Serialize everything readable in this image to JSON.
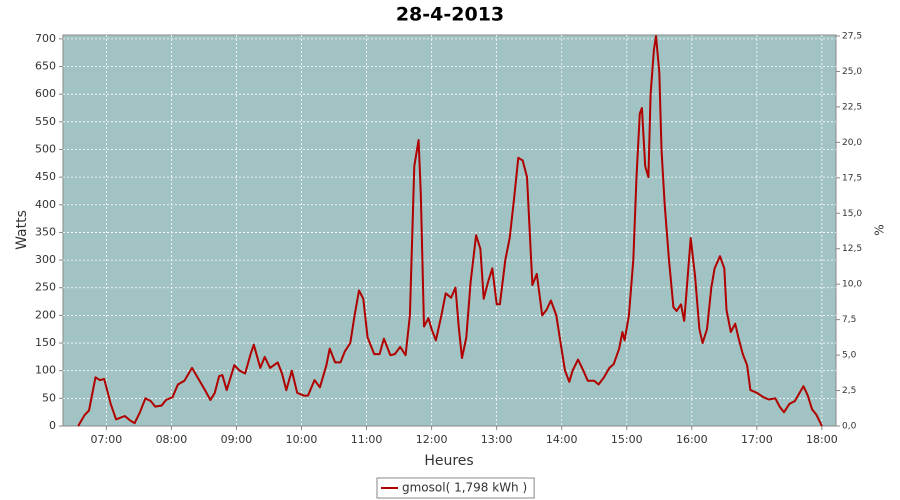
{
  "chart_data": {
    "type": "line",
    "title": "28-4-2013",
    "x_label": "Heures",
    "y_label": "Watts",
    "y2_label": "%",
    "x": [
      "06:34",
      "06:40",
      "06:44",
      "06:50",
      "06:54",
      "06:58",
      "07:04",
      "07:09",
      "07:17",
      "07:22",
      "07:26",
      "07:31",
      "07:36",
      "07:41",
      "07:45",
      "07:51",
      "07:55",
      "08:01",
      "08:06",
      "08:12",
      "08:19",
      "08:25",
      "08:31",
      "08:36",
      "08:40",
      "08:44",
      "08:47",
      "08:51",
      "08:58",
      "09:03",
      "09:08",
      "09:13",
      "09:16",
      "09:22",
      "09:26",
      "09:31",
      "09:38",
      "09:42",
      "09:46",
      "09:51",
      "09:56",
      "10:02",
      "10:06",
      "10:12",
      "10:17",
      "10:23",
      "10:26",
      "10:31",
      "10:36",
      "10:40",
      "10:45",
      "10:49",
      "10:53",
      "10:57",
      "11:01",
      "11:07",
      "11:12",
      "11:16",
      "11:22",
      "11:26",
      "11:31",
      "11:36",
      "11:40",
      "11:44",
      "11:48",
      "11:50",
      "11:53",
      "11:57",
      "12:00",
      "12:04",
      "12:09",
      "12:13",
      "12:18",
      "12:22",
      "12:25",
      "12:28",
      "12:32",
      "12:36",
      "12:41",
      "12:45",
      "12:48",
      "12:52",
      "12:56",
      "13:00",
      "13:03",
      "13:08",
      "13:12",
      "13:16",
      "13:20",
      "13:24",
      "13:28",
      "13:33",
      "13:37",
      "13:42",
      "13:46",
      "13:50",
      "13:55",
      "13:59",
      "14:03",
      "14:07",
      "14:10",
      "14:15",
      "14:20",
      "14:24",
      "14:30",
      "14:34",
      "14:39",
      "14:44",
      "14:48",
      "14:53",
      "14:56",
      "14:58",
      "15:02",
      "15:06",
      "15:09",
      "15:12",
      "15:14",
      "15:17",
      "15:20",
      "15:22",
      "15:25",
      "15:27",
      "15:30",
      "15:32",
      "15:35",
      "15:39",
      "15:43",
      "15:46",
      "15:50",
      "15:53",
      "15:55",
      "15:59",
      "16:03",
      "16:07",
      "16:10",
      "16:14",
      "16:18",
      "16:21",
      "16:26",
      "16:30",
      "16:32",
      "16:36",
      "16:40",
      "16:43",
      "16:47",
      "16:51",
      "16:54",
      "17:00",
      "17:06",
      "17:11",
      "17:17",
      "17:21",
      "17:25",
      "17:30",
      "17:35",
      "17:40",
      "17:43",
      "17:47",
      "17:51",
      "17:55",
      "18:00"
    ],
    "series": [
      {
        "name": "gmosol( 1,798 kWh )",
        "color": "#b00000",
        "values": [
          0,
          20,
          28,
          88,
          83,
          85,
          40,
          12,
          18,
          10,
          5,
          25,
          50,
          45,
          35,
          37,
          47,
          52,
          75,
          82,
          105,
          85,
          65,
          47,
          60,
          90,
          92,
          65,
          110,
          100,
          95,
          130,
          147,
          105,
          125,
          105,
          115,
          95,
          65,
          100,
          60,
          55,
          55,
          83,
          70,
          110,
          140,
          115,
          115,
          135,
          150,
          200,
          245,
          230,
          160,
          130,
          130,
          158,
          128,
          130,
          143,
          128,
          200,
          470,
          517,
          420,
          180,
          195,
          175,
          155,
          200,
          240,
          232,
          250,
          180,
          123,
          160,
          260,
          345,
          320,
          230,
          260,
          285,
          220,
          220,
          300,
          340,
          410,
          485,
          480,
          450,
          255,
          275,
          200,
          210,
          227,
          200,
          150,
          100,
          80,
          100,
          120,
          100,
          82,
          82,
          75,
          88,
          105,
          112,
          140,
          170,
          155,
          200,
          300,
          450,
          565,
          575,
          470,
          450,
          600,
          680,
          705,
          640,
          500,
          400,
          300,
          215,
          208,
          220,
          190,
          240,
          340,
          270,
          175,
          150,
          175,
          250,
          285,
          307,
          285,
          210,
          170,
          185,
          160,
          130,
          110,
          65,
          60,
          52,
          48,
          50,
          35,
          25,
          40,
          45,
          62,
          72,
          55,
          30,
          20,
          0
        ]
      }
    ],
    "xlim": [
      "06:20",
      "18:13"
    ],
    "xticks": [
      "07:00",
      "08:00",
      "09:00",
      "10:00",
      "11:00",
      "12:00",
      "13:00",
      "14:00",
      "15:00",
      "16:00",
      "17:00",
      "18:00"
    ],
    "ylim": [
      0,
      707
    ],
    "yticks": [
      0,
      50,
      100,
      150,
      200,
      250,
      300,
      350,
      400,
      450,
      500,
      550,
      600,
      650,
      700
    ],
    "y2lim": [
      0,
      27.57
    ],
    "y2ticks": [
      {
        "value": 0,
        "label": "0,0"
      },
      {
        "value": 2.5,
        "label": "2,5"
      },
      {
        "value": 5,
        "label": "5,0"
      },
      {
        "value": 7.5,
        "label": "7,5"
      },
      {
        "value": 10,
        "label": "10,0"
      },
      {
        "value": 12.5,
        "label": "12,5"
      },
      {
        "value": 15,
        "label": "15,0"
      },
      {
        "value": 17.5,
        "label": "17,5"
      },
      {
        "value": 20,
        "label": "20,0"
      },
      {
        "value": 22.5,
        "label": "22,5"
      },
      {
        "value": 25,
        "label": "25,0"
      },
      {
        "value": 27.5,
        "label": "27,5"
      }
    ],
    "grid": true,
    "plot_background": "#a1c3c3",
    "legend": "bottom"
  }
}
